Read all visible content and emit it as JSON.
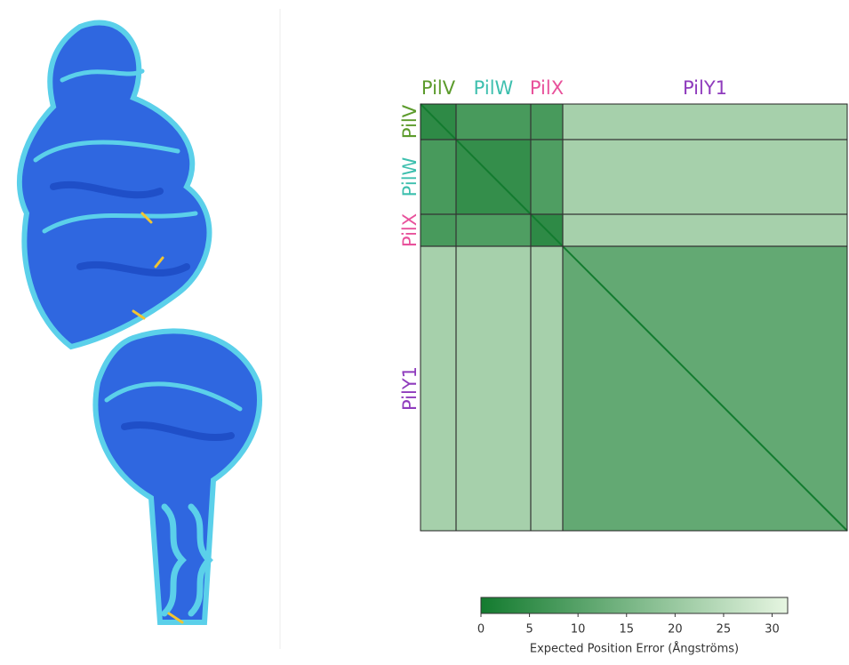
{
  "chart_data": {
    "type": "heatmap",
    "categories": [
      "PilV",
      "PilW",
      "PilX",
      "PilY1"
    ],
    "category_colors": [
      "#5c9b2c",
      "#3dbfae",
      "#e8519b",
      "#8f3cbd"
    ],
    "values": [
      [
        4,
        8,
        8,
        22
      ],
      [
        8,
        5,
        9,
        22
      ],
      [
        8,
        9,
        4,
        22
      ],
      [
        22,
        22,
        22,
        12
      ]
    ],
    "colormap": [
      "#137b2f",
      "#e6f5e1"
    ],
    "zlim": [
      0,
      31.6
    ],
    "zticks": [
      0,
      5,
      10,
      15,
      20,
      25,
      30
    ],
    "zlabel": "Expected Position Error (Ångströms)"
  }
}
